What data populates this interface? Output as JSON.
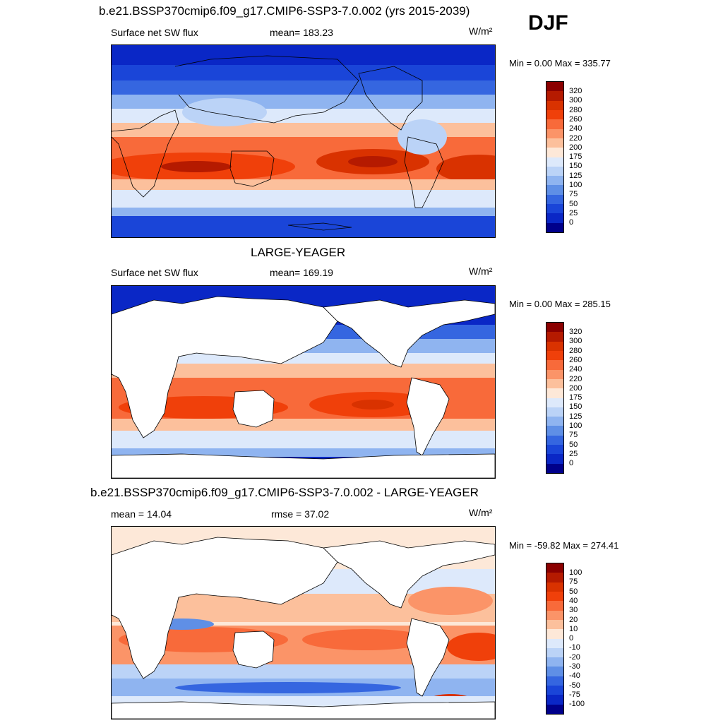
{
  "page": {
    "title": "b.e21.BSSP370cmip6.f09_g17.CMIP6-SSP3-7.0.002 (yrs 2015-2039)",
    "season": "DJF"
  },
  "panels": [
    {
      "variable": "Surface net SW flux",
      "stat_label": "mean= 183.23",
      "units": "W/m²",
      "minmax": "Min =   0.00 Max = 335.77"
    },
    {
      "title": "LARGE-YEAGER",
      "variable": "Surface net SW flux",
      "stat_label": "mean= 169.19",
      "units": "W/m²",
      "minmax": "Min =   0.00 Max = 285.15"
    },
    {
      "title": "b.e21.BSSP370cmip6.f09_g17.CMIP6-SSP3-7.0.002 - LARGE-YEAGER",
      "left_label": "mean =  14.04",
      "stat_label": "rmse =  37.02",
      "units": "W/m²",
      "minmax": "Min = -59.82 Max = 274.41"
    }
  ],
  "colorbars": {
    "abs_levels": [
      "320",
      "300",
      "280",
      "260",
      "240",
      "220",
      "200",
      "175",
      "150",
      "125",
      "100",
      "75",
      "50",
      "25",
      "0"
    ],
    "diff_levels": [
      "100",
      "75",
      "50",
      "40",
      "30",
      "20",
      "10",
      "0",
      "-10",
      "-20",
      "-30",
      "-40",
      "-50",
      "-75",
      "-100"
    ],
    "colors": [
      "#8b0000",
      "#b51a00",
      "#d93200",
      "#f0400a",
      "#f86a3a",
      "#fb9468",
      "#fcc09c",
      "#fde8d8",
      "#dde9fb",
      "#bbd3f7",
      "#8fb4f0",
      "#5f8fe6",
      "#3566e0",
      "#1a45d8",
      "#0a27c6",
      "#00008b"
    ]
  }
}
